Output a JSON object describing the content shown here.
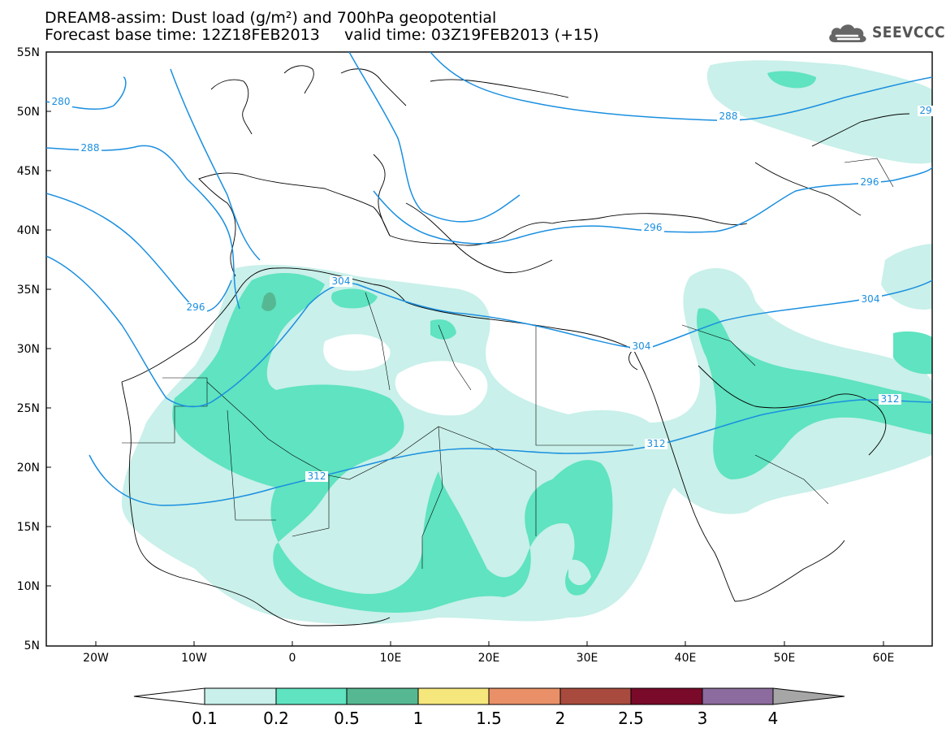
{
  "header": {
    "title_line1": "DREAM8-assim: Dust load (g/m²) and 700hPa geopotential",
    "title_line2": "Forecast base time: 12Z18FEB2013     valid time: 03Z19FEB2013 (+15)",
    "logo_text": "SEEVCCC"
  },
  "map": {
    "lat_range": [
      5,
      55
    ],
    "lon_range": [
      -25,
      65
    ],
    "lat_labels": [
      "55N",
      "50N",
      "45N",
      "40N",
      "35N",
      "30N",
      "25N",
      "20N",
      "15N",
      "10N",
      "5N"
    ],
    "lon_labels": [
      "20W",
      "10W",
      "0",
      "10E",
      "20E",
      "30E",
      "40E",
      "50E",
      "60E"
    ],
    "contour_color": "#1a8fe0",
    "contour_labels": [
      {
        "text": "280"
      },
      {
        "text": "288"
      },
      {
        "text": "288"
      },
      {
        "text": "29"
      },
      {
        "text": "296"
      },
      {
        "text": "296"
      },
      {
        "text": "296"
      },
      {
        "text": "304"
      },
      {
        "text": "304"
      },
      {
        "text": "304"
      },
      {
        "text": "312"
      },
      {
        "text": "312"
      },
      {
        "text": "312"
      }
    ]
  },
  "colorbar": {
    "labels": [
      "0.1",
      "0.2",
      "0.5",
      "1",
      "1.5",
      "2",
      "2.5",
      "3",
      "4"
    ],
    "colors": [
      "#ffffff",
      "#c9f0ea",
      "#5fe3c0",
      "#56b892",
      "#f5e77c",
      "#e99068",
      "#a84b3e",
      "#7a0a2a",
      "#8c6b9e",
      "#a6a6a6"
    ]
  }
}
